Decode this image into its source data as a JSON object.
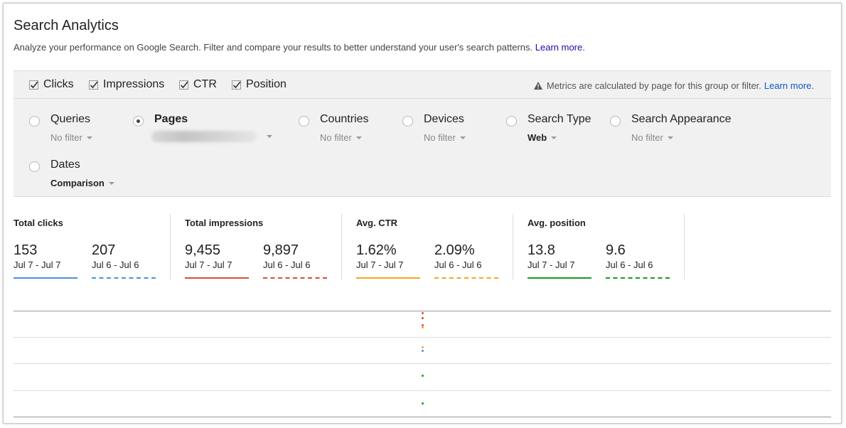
{
  "header": {
    "title": "Search Analytics",
    "description": "Analyze your performance on Google Search. Filter and compare your results to better understand your user's search patterns.",
    "learn_more": "Learn more."
  },
  "metrics": {
    "checkboxes": [
      {
        "label": "Clicks",
        "checked": true
      },
      {
        "label": "Impressions",
        "checked": true
      },
      {
        "label": "CTR",
        "checked": true
      },
      {
        "label": "Position",
        "checked": true
      }
    ],
    "notice": "Metrics are calculated by page for this group or filter.",
    "notice_link": "Learn more."
  },
  "dimensions": {
    "queries": {
      "label": "Queries",
      "filter": "No filter",
      "selected": false
    },
    "pages": {
      "label": "Pages",
      "filter": "",
      "selected": true
    },
    "countries": {
      "label": "Countries",
      "filter": "No filter",
      "selected": false
    },
    "devices": {
      "label": "Devices",
      "filter": "No filter",
      "selected": false
    },
    "search_type": {
      "label": "Search Type",
      "filter": "Web",
      "selected": false
    },
    "search_appearance": {
      "label": "Search Appearance",
      "filter": "No filter",
      "selected": false
    },
    "dates": {
      "label": "Dates",
      "filter": "Comparison",
      "selected": false
    }
  },
  "totals": [
    {
      "title": "Total clicks",
      "a": {
        "value": "153",
        "range": "Jul 7 - Jul 7"
      },
      "b": {
        "value": "207",
        "range": "Jul 6 - Jul 6"
      },
      "color": "#4a90e2"
    },
    {
      "title": "Total impressions",
      "a": {
        "value": "9,455",
        "range": "Jul 7 - Jul 7"
      },
      "b": {
        "value": "9,897",
        "range": "Jul 6 - Jul 6"
      },
      "color": "#dd4b39"
    },
    {
      "title": "Avg. CTR",
      "a": {
        "value": "1.62%",
        "range": "Jul 7 - Jul 7"
      },
      "b": {
        "value": "2.09%",
        "range": "Jul 6 - Jul 6"
      },
      "color": "#f5a623"
    },
    {
      "title": "Avg. position",
      "a": {
        "value": "13.8",
        "range": "Jul 7 - Jul 7"
      },
      "b": {
        "value": "9.6",
        "range": "Jul 6 - Jul 6"
      },
      "color": "#1a9b1a"
    }
  ]
}
